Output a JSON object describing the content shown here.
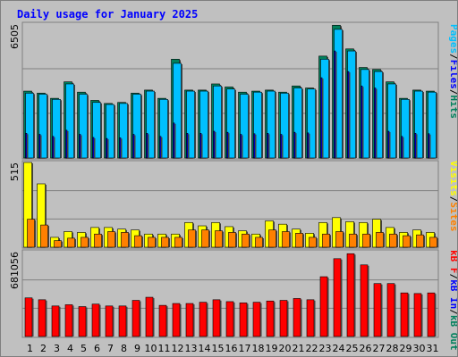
{
  "title": "Daily usage for January 2025",
  "colors": {
    "background": "#c0c0c0",
    "plot_bg": "#c0c0c0",
    "hits": "#00805c",
    "files": "#0000ff",
    "pages": "#00c0ff",
    "visits": "#ffff00",
    "sites": "#ff8000",
    "kbytes": "#ff0000",
    "weekend_label": "#00805c",
    "weekday_label": "#000000",
    "slash": "#000000"
  },
  "chart_data": [
    {
      "type": "bar",
      "panel": "hits-files-pages",
      "categories": [
        "1",
        "2",
        "3",
        "4",
        "5",
        "6",
        "7",
        "8",
        "9",
        "10",
        "11",
        "12",
        "13",
        "14",
        "15",
        "16",
        "17",
        "18",
        "19",
        "20",
        "21",
        "22",
        "23",
        "24",
        "25",
        "26",
        "27",
        "28",
        "29",
        "30",
        "31"
      ],
      "ylim": [
        0,
        6505
      ],
      "y_tick_label": "6505",
      "grid": true,
      "legend_labels": [
        "Pages",
        "Files",
        "Hits"
      ],
      "series": [
        {
          "name": "Hits",
          "values": [
            3250,
            3150,
            2900,
            3700,
            3200,
            2800,
            2650,
            2700,
            3150,
            3300,
            2900,
            4800,
            3300,
            3300,
            3600,
            3450,
            3200,
            3250,
            3300,
            3200,
            3500,
            3400,
            4950,
            6450,
            5300,
            4400,
            4300,
            3700,
            2900,
            3300,
            3250
          ]
        },
        {
          "name": "Files",
          "values": [
            1200,
            1150,
            1050,
            1350,
            1150,
            1000,
            950,
            980,
            1150,
            1200,
            1050,
            1700,
            1200,
            1200,
            1300,
            1250,
            1150,
            1180,
            1200,
            1150,
            1250,
            1220,
            3900,
            5200,
            4200,
            3500,
            3400,
            1300,
            1050,
            1200,
            1180
          ]
        },
        {
          "name": "Pages",
          "values": [
            3150,
            3100,
            2850,
            3600,
            3100,
            2700,
            2600,
            2650,
            3100,
            3250,
            2850,
            4600,
            3250,
            3250,
            3500,
            3350,
            3100,
            3200,
            3250,
            3150,
            3400,
            3350,
            4800,
            6250,
            5200,
            4300,
            4200,
            3600,
            2850,
            3250,
            3200
          ]
        }
      ],
      "weekend_days": [
        "4",
        "5",
        "11",
        "12",
        "18",
        "19",
        "25",
        "26"
      ]
    },
    {
      "type": "bar",
      "panel": "visits-sites",
      "categories": [
        "1",
        "2",
        "3",
        "4",
        "5",
        "6",
        "7",
        "8",
        "9",
        "10",
        "11",
        "12",
        "13",
        "14",
        "15",
        "16",
        "17",
        "18",
        "19",
        "20",
        "21",
        "22",
        "23",
        "24",
        "25",
        "26",
        "27",
        "28",
        "29",
        "30",
        "31"
      ],
      "ylim": [
        0,
        515
      ],
      "y_tick_label": "515",
      "legend_labels": [
        "Visits",
        "Sites"
      ],
      "series": [
        {
          "name": "Visits",
          "values": [
            515,
            385,
            60,
            95,
            90,
            120,
            120,
            110,
            105,
            80,
            80,
            80,
            150,
            130,
            150,
            125,
            100,
            80,
            160,
            140,
            110,
            85,
            150,
            180,
            155,
            150,
            170,
            120,
            90,
            105,
            90
          ]
        },
        {
          "name": "Sites",
          "values": [
            170,
            135,
            40,
            55,
            60,
            80,
            95,
            90,
            70,
            60,
            60,
            60,
            105,
            105,
            100,
            90,
            80,
            60,
            105,
            95,
            85,
            60,
            80,
            95,
            80,
            80,
            90,
            80,
            70,
            75,
            60
          ]
        }
      ]
    },
    {
      "type": "bar",
      "panel": "kbytes",
      "categories": [
        "1",
        "2",
        "3",
        "4",
        "5",
        "6",
        "7",
        "8",
        "9",
        "10",
        "11",
        "12",
        "13",
        "14",
        "15",
        "16",
        "17",
        "18",
        "19",
        "20",
        "21",
        "22",
        "23",
        "24",
        "25",
        "26",
        "27",
        "28",
        "29",
        "30",
        "31"
      ],
      "ylim": [
        0,
        681056
      ],
      "y_tick_label": "681056",
      "legend_labels": [
        "kB F",
        "kB In",
        "kB Out"
      ],
      "series": [
        {
          "name": "kB F",
          "values": [
            310000,
            295000,
            245000,
            255000,
            240000,
            260000,
            245000,
            245000,
            290000,
            315000,
            250000,
            265000,
            265000,
            275000,
            295000,
            280000,
            270000,
            275000,
            285000,
            290000,
            305000,
            295000,
            480000,
            625000,
            665000,
            575000,
            425000,
            425000,
            350000,
            345000,
            350000
          ]
        }
      ]
    }
  ]
}
